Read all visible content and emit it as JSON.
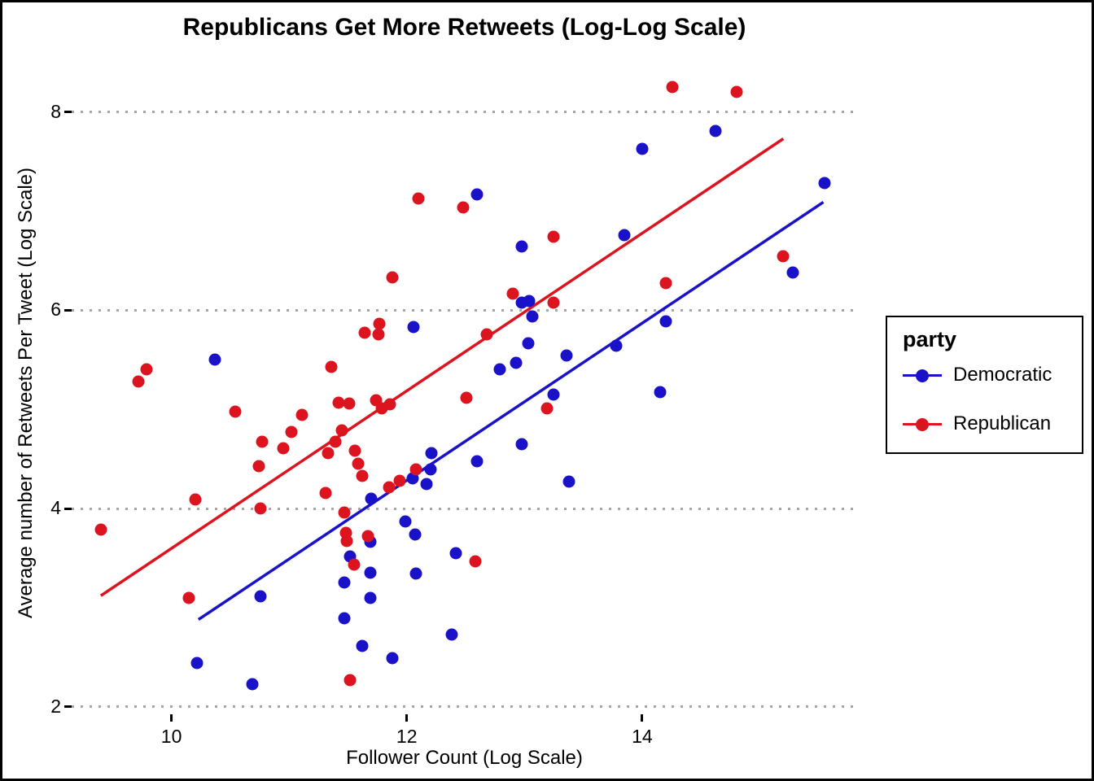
{
  "chart_data": {
    "type": "scatter",
    "title": "Republicans Get More Retweets (Log-Log Scale)",
    "xlabel": "Follower Count (Log Scale)",
    "ylabel": "Average number of Retweets Per Tweet (Log Scale)",
    "x_domain": [
      9.152,
      15.827
    ],
    "y_domain": [
      1.924,
      8.53
    ],
    "x_ticks": [
      10,
      12,
      14
    ],
    "y_ticks": [
      2,
      4,
      6,
      8
    ],
    "grid": "horizontal-dotted-major-only",
    "gridline_color": "#a6a6a6",
    "legend": {
      "title": "party",
      "position": "right",
      "entries": [
        {
          "label": "Democratic",
          "color": "#1a12c8"
        },
        {
          "label": "Republican",
          "color": "#dc1420"
        }
      ]
    },
    "series": [
      {
        "name": "Democratic",
        "color": "#1a12c8",
        "trend_line": [
          [
            10.23,
            2.88
          ],
          [
            15.54,
            7.09
          ]
        ],
        "points": [
          [
            14.62,
            7.81
          ],
          [
            14.0,
            7.63
          ],
          [
            15.55,
            7.28
          ],
          [
            12.6,
            7.17
          ],
          [
            13.85,
            6.76
          ],
          [
            12.98,
            6.64
          ],
          [
            15.28,
            6.38
          ],
          [
            12.98,
            6.08
          ],
          [
            13.04,
            6.09
          ],
          [
            13.07,
            5.94
          ],
          [
            14.2,
            5.89
          ],
          [
            12.06,
            5.83
          ],
          [
            13.03,
            5.67
          ],
          [
            13.78,
            5.64
          ],
          [
            13.36,
            5.54
          ],
          [
            10.37,
            5.5
          ],
          [
            12.93,
            5.47
          ],
          [
            12.79,
            5.4
          ],
          [
            14.15,
            5.17
          ],
          [
            13.25,
            5.15
          ],
          [
            12.98,
            4.65
          ],
          [
            12.6,
            4.48
          ],
          [
            12.21,
            4.56
          ],
          [
            12.2,
            4.39
          ],
          [
            12.17,
            4.25
          ],
          [
            12.05,
            4.3
          ],
          [
            13.38,
            4.27
          ],
          [
            11.7,
            4.1
          ],
          [
            11.99,
            3.87
          ],
          [
            12.07,
            3.74
          ],
          [
            11.69,
            3.66
          ],
          [
            11.52,
            3.52
          ],
          [
            11.69,
            3.35
          ],
          [
            12.08,
            3.34
          ],
          [
            12.42,
            3.55
          ],
          [
            11.47,
            3.25
          ],
          [
            11.69,
            3.1
          ],
          [
            10.76,
            3.11
          ],
          [
            11.47,
            2.89
          ],
          [
            11.62,
            2.61
          ],
          [
            11.88,
            2.49
          ],
          [
            12.38,
            2.73
          ],
          [
            10.22,
            2.44
          ],
          [
            10.69,
            2.23
          ]
        ]
      },
      {
        "name": "Republican",
        "color": "#dc1420",
        "trend_line": [
          [
            9.4,
            3.12
          ],
          [
            15.2,
            7.73
          ]
        ],
        "points": [
          [
            14.26,
            8.25
          ],
          [
            14.8,
            8.2
          ],
          [
            12.1,
            7.13
          ],
          [
            12.48,
            7.04
          ],
          [
            13.25,
            6.74
          ],
          [
            15.2,
            6.54
          ],
          [
            11.88,
            6.33
          ],
          [
            14.2,
            6.27
          ],
          [
            12.9,
            6.17
          ],
          [
            13.25,
            6.08
          ],
          [
            12.68,
            5.76
          ],
          [
            11.77,
            5.86
          ],
          [
            11.76,
            5.76
          ],
          [
            11.64,
            5.77
          ],
          [
            9.79,
            5.4
          ],
          [
            9.72,
            5.28
          ],
          [
            11.36,
            5.43
          ],
          [
            12.51,
            5.12
          ],
          [
            13.19,
            5.01
          ],
          [
            10.54,
            4.98
          ],
          [
            11.42,
            5.07
          ],
          [
            11.51,
            5.06
          ],
          [
            11.74,
            5.09
          ],
          [
            11.79,
            5.01
          ],
          [
            11.86,
            5.05
          ],
          [
            11.11,
            4.94
          ],
          [
            11.02,
            4.77
          ],
          [
            11.45,
            4.79
          ],
          [
            11.39,
            4.67
          ],
          [
            11.56,
            4.58
          ],
          [
            10.77,
            4.67
          ],
          [
            10.95,
            4.61
          ],
          [
            11.33,
            4.56
          ],
          [
            11.59,
            4.45
          ],
          [
            11.62,
            4.33
          ],
          [
            10.74,
            4.43
          ],
          [
            11.85,
            4.21
          ],
          [
            11.94,
            4.28
          ],
          [
            12.08,
            4.39
          ],
          [
            11.31,
            4.16
          ],
          [
            10.2,
            4.09
          ],
          [
            10.76,
            4.0
          ],
          [
            11.47,
            3.96
          ],
          [
            9.4,
            3.79
          ],
          [
            11.48,
            3.75
          ],
          [
            11.49,
            3.67
          ],
          [
            11.67,
            3.72
          ],
          [
            11.55,
            3.43
          ],
          [
            12.58,
            3.47
          ],
          [
            10.15,
            3.1
          ],
          [
            11.52,
            2.27
          ]
        ]
      }
    ]
  }
}
